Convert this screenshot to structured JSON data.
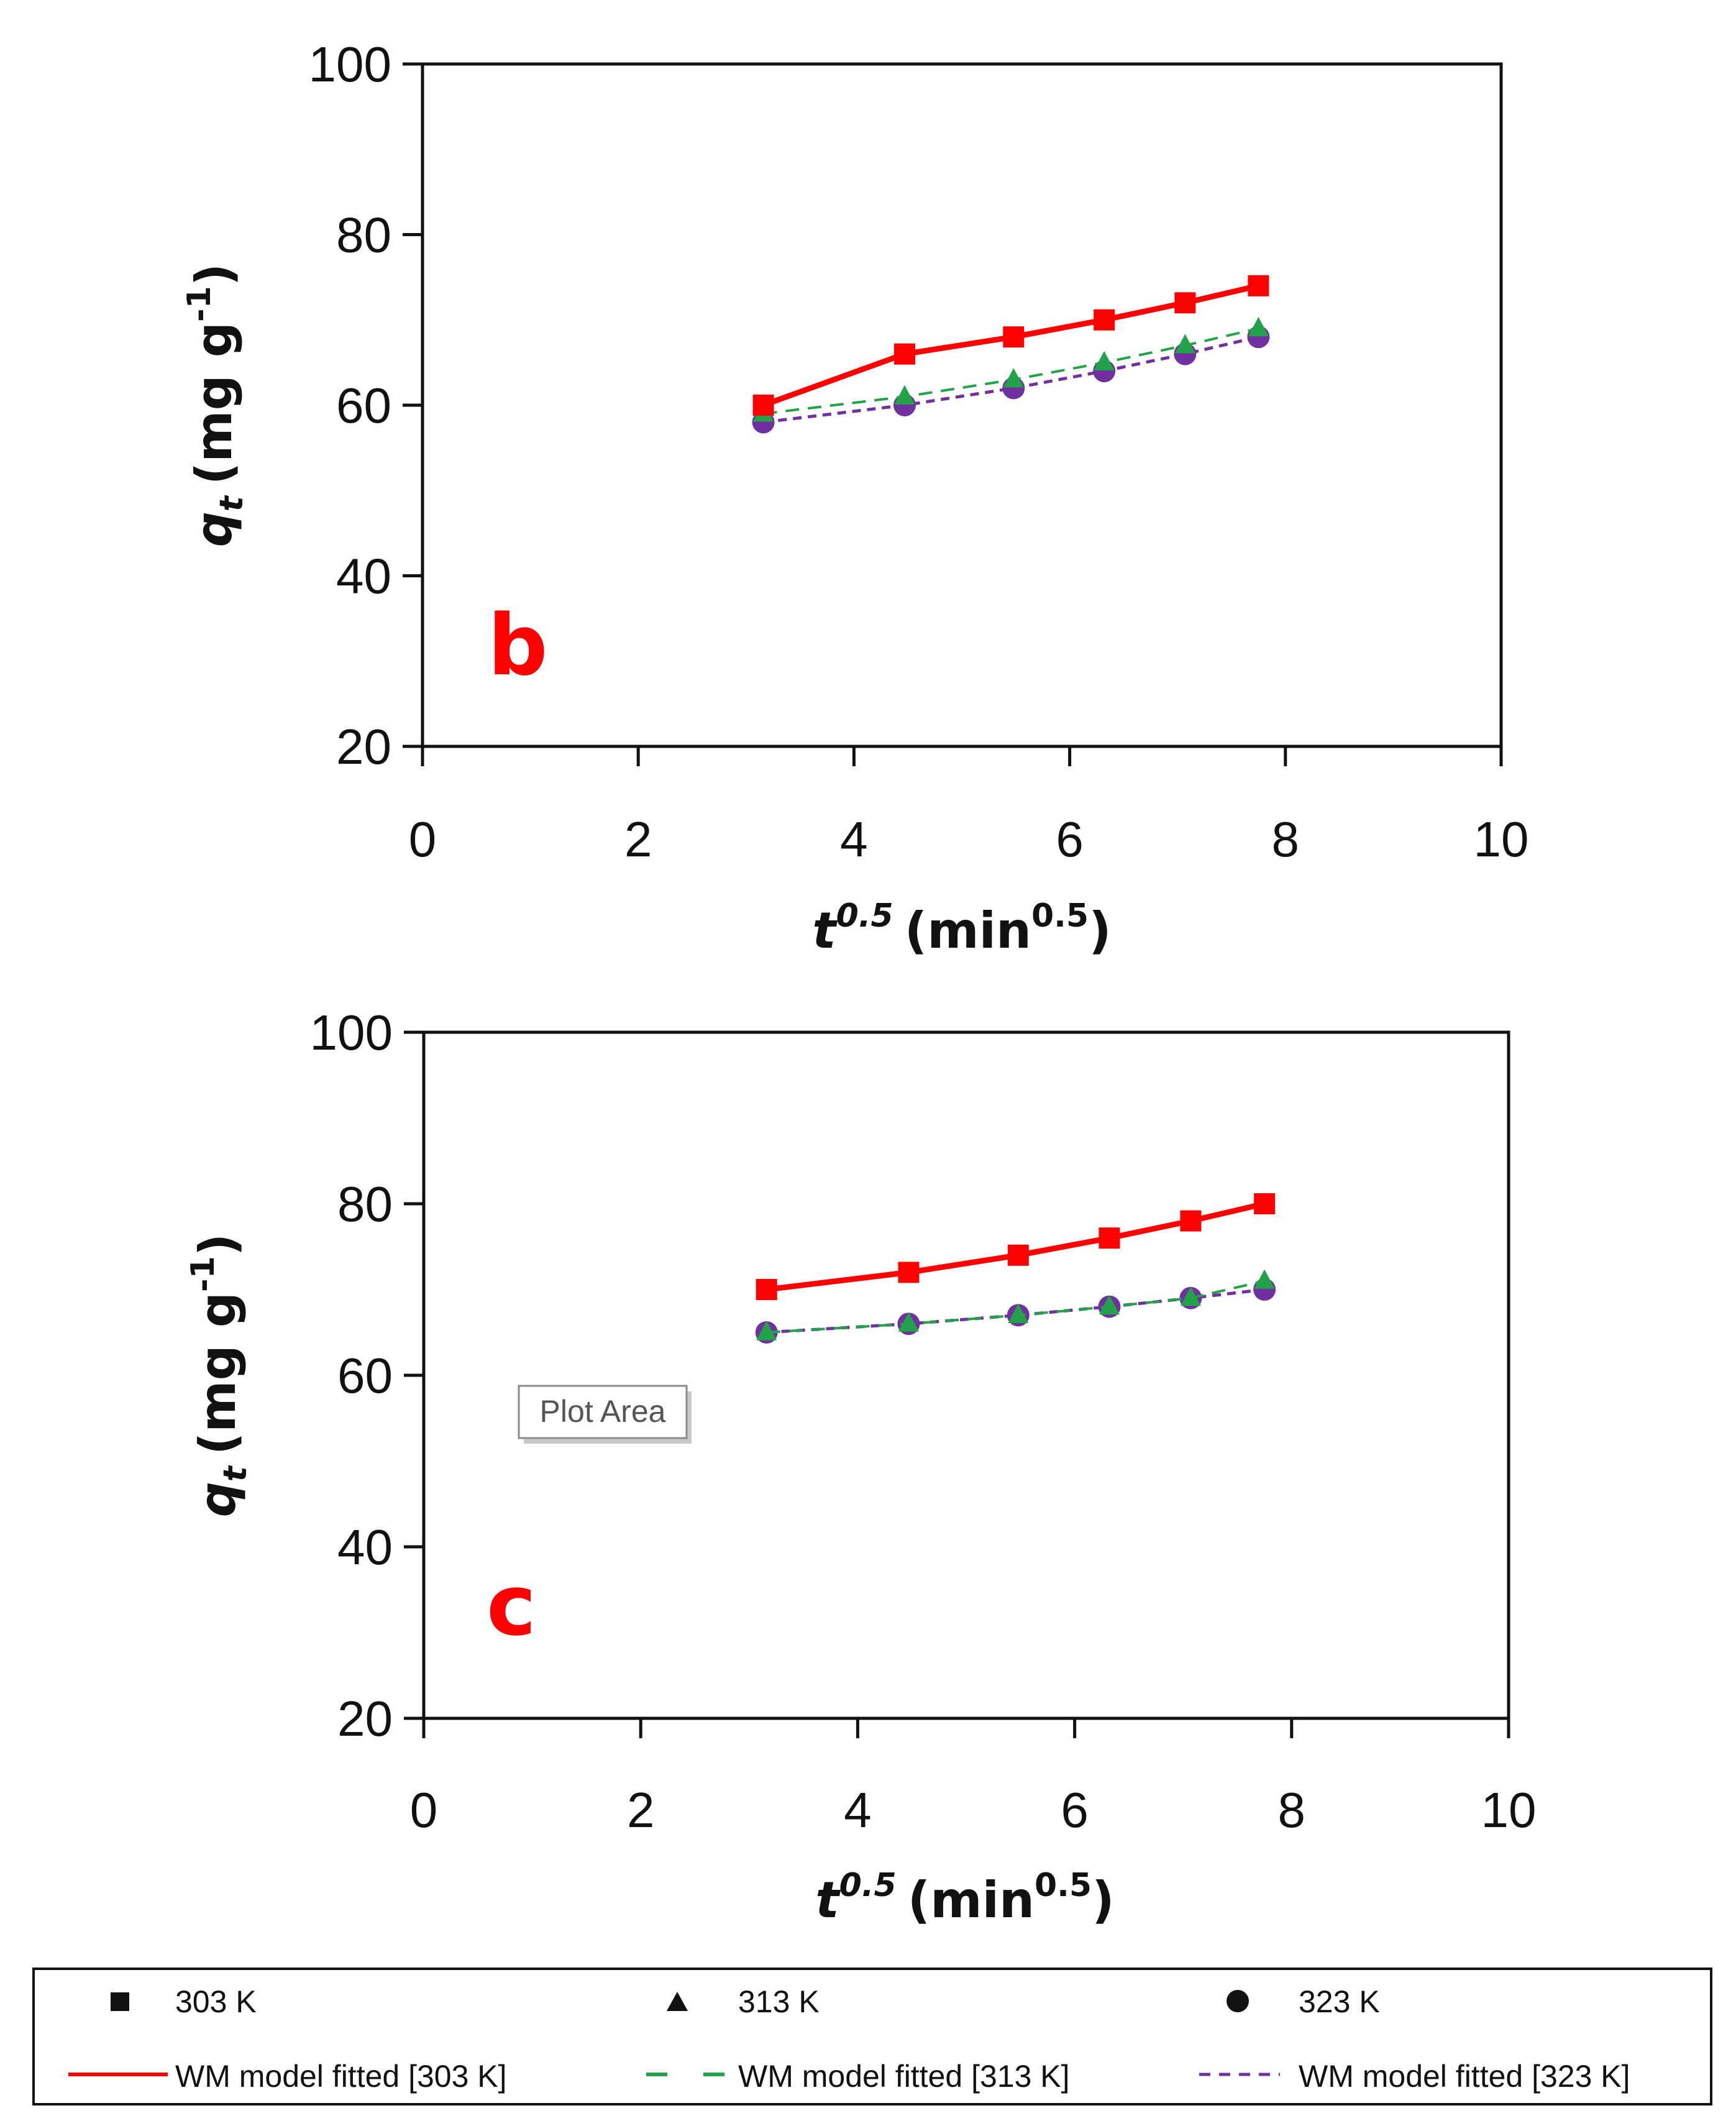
{
  "chart_data": [
    {
      "type": "line",
      "panel_label": "b",
      "x": [
        3.16,
        4.47,
        5.48,
        6.32,
        7.07,
        7.75
      ],
      "series": [
        {
          "name": "303 K",
          "values": [
            60,
            66,
            68,
            70,
            72,
            74
          ]
        },
        {
          "name": "313 K",
          "values": [
            59,
            61,
            63,
            65,
            67,
            69
          ]
        },
        {
          "name": "323 K",
          "values": [
            58,
            60,
            62,
            64,
            66,
            68
          ]
        }
      ],
      "xlim": [
        0,
        10
      ],
      "ylim": [
        20,
        100
      ],
      "xticks": [
        "0",
        "2",
        "4",
        "6",
        "8",
        "10"
      ],
      "yticks": [
        "20",
        "40",
        "60",
        "80",
        "100"
      ],
      "xlabel": {
        "base": "t",
        "sup": "0.5",
        "unit": "(min",
        "unit_sup": "0.5",
        "close": ")"
      },
      "ylabel": {
        "base": "q",
        "sub": "t",
        "unit": "(mg g",
        "unit_sup": "-1",
        "close": ")"
      },
      "grid": false
    },
    {
      "type": "line",
      "panel_label": "c",
      "x": [
        3.16,
        4.47,
        5.48,
        6.32,
        7.07,
        7.75
      ],
      "series": [
        {
          "name": "303 K",
          "values": [
            70,
            72,
            74,
            76,
            78,
            80
          ]
        },
        {
          "name": "313 K",
          "values": [
            65,
            66,
            67,
            68,
            69,
            71
          ]
        },
        {
          "name": "323 K",
          "values": [
            65,
            66,
            67,
            68,
            69,
            70
          ]
        }
      ],
      "xlim": [
        0,
        10
      ],
      "ylim": [
        20,
        100
      ],
      "xticks": [
        "0",
        "2",
        "4",
        "6",
        "8",
        "10"
      ],
      "yticks": [
        "20",
        "40",
        "60",
        "80",
        "100"
      ],
      "xlabel": {
        "base": "t",
        "sup": "0.5",
        "unit": "(min",
        "unit_sup": "0.5",
        "close": ")"
      },
      "ylabel": {
        "base": "q",
        "sub": "t",
        "unit": "(mg g",
        "unit_sup": "-1",
        "close": ")"
      },
      "grid": false,
      "tooltip": "Plot Area"
    }
  ],
  "legend": {
    "placement": "bottom",
    "markers": [
      "303 K",
      "313 K",
      "323 K"
    ],
    "fits": [
      "WM model fitted [303 K]",
      "WM model fitted [313 K]",
      "WM model fitted [323 K]"
    ]
  },
  "colors": {
    "303 K": "#ff0000",
    "313 K": "#22a34a",
    "323 K": "#7030a0",
    "panel_label": "#ff0000",
    "axis": "#111111"
  },
  "markers": {
    "303 K": "square",
    "313 K": "triangle",
    "323 K": "circle"
  }
}
